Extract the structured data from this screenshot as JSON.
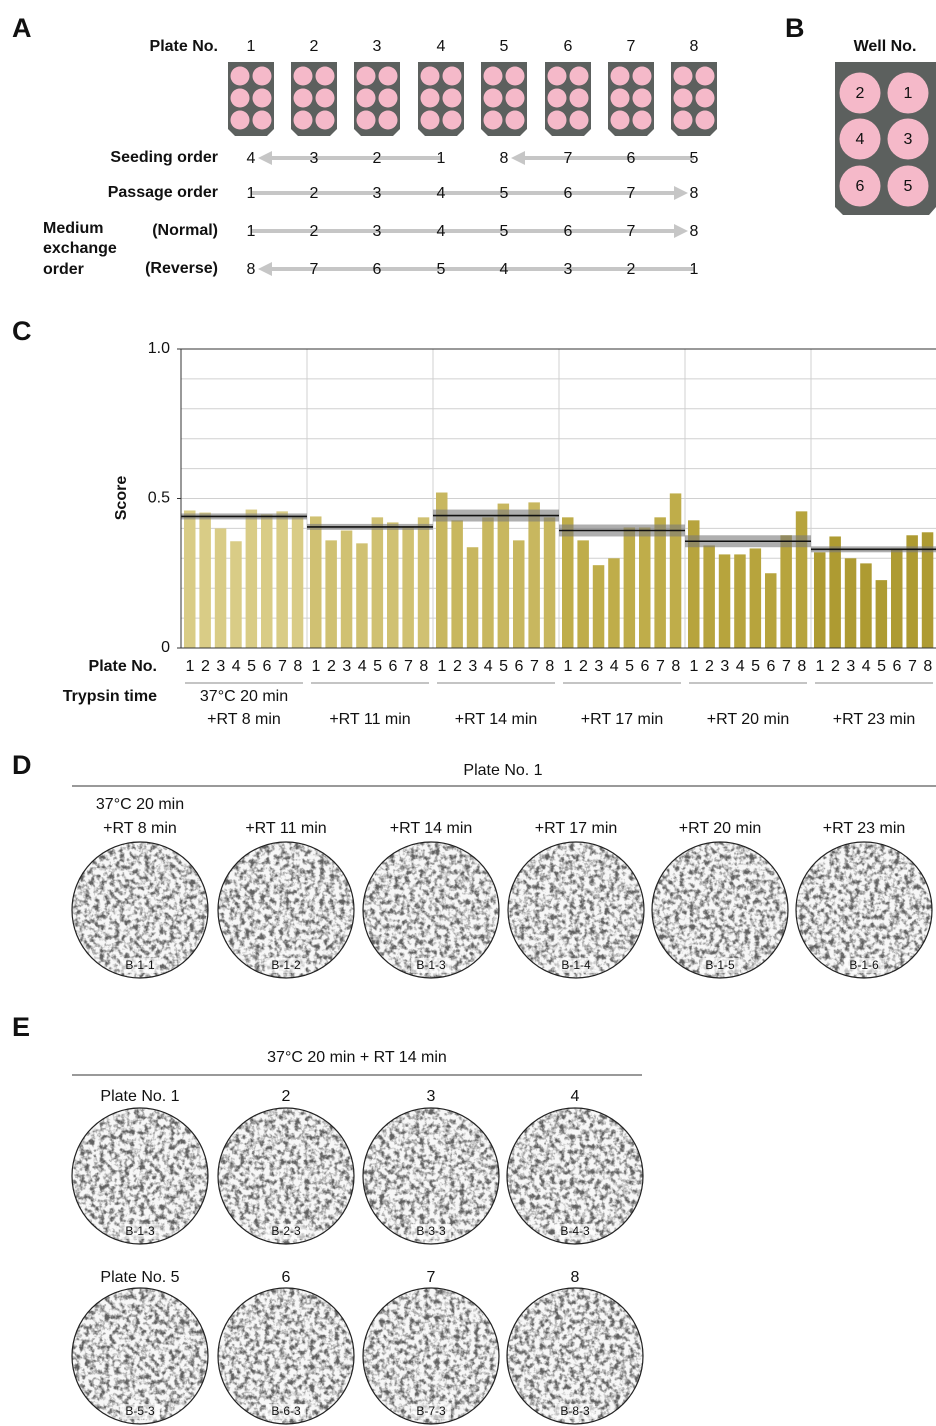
{
  "panel_a": {
    "label": "A",
    "plate_header": "Plate No.",
    "plates": [
      1,
      2,
      3,
      4,
      5,
      6,
      7,
      8
    ],
    "orders": [
      {
        "label": "Seeding order",
        "values": [
          4,
          3,
          2,
          1,
          8,
          7,
          6,
          5
        ]
      },
      {
        "label": "Passage order",
        "values": [
          1,
          2,
          3,
          4,
          5,
          6,
          7,
          8
        ]
      }
    ],
    "medium_exchange": {
      "label": [
        "Medium",
        "exchange",
        "order"
      ],
      "rows": [
        {
          "label": "(Normal)",
          "values": [
            1,
            2,
            3,
            4,
            5,
            6,
            7,
            8
          ]
        },
        {
          "label": "(Reverse)",
          "values": [
            8,
            7,
            6,
            5,
            4,
            3,
            2,
            1
          ]
        }
      ]
    }
  },
  "panel_b": {
    "label": "B",
    "title": "Well No.",
    "wells": [
      2,
      1,
      4,
      3,
      6,
      5
    ]
  },
  "chart_data": {
    "panel_label": "C",
    "type": "bar",
    "ylabel": "Score",
    "xlabel": "Plate No.",
    "group_axis_label": "Trypsin time",
    "categories": [
      "1",
      "2",
      "3",
      "4",
      "5",
      "6",
      "7",
      "8"
    ],
    "ylim": [
      0,
      1
    ],
    "yticks": [
      0,
      0.5,
      {
        "value": 1,
        "label": "1.0"
      }
    ],
    "grid_yticks": [
      0.1,
      0.2,
      0.3,
      0.4,
      0.5,
      0.6,
      0.7,
      0.8,
      0.9,
      1
    ],
    "grid": true,
    "groups": [
      {
        "label": [
          "37°C 20 min",
          "+RT 8 min"
        ],
        "color": "#d9cc86",
        "values": [
          0.46,
          0.453,
          0.4,
          0.357,
          0.463,
          0.447,
          0.457,
          0.437
        ],
        "mean": 0.44,
        "sd": 0.01
      },
      {
        "label": [
          "+RT 11 min"
        ],
        "color": "#d0c172",
        "values": [
          0.44,
          0.36,
          0.393,
          0.35,
          0.437,
          0.42,
          0.407,
          0.437
        ],
        "mean": 0.405,
        "sd": 0.01
      },
      {
        "label": [
          "+RT 14 min"
        ],
        "color": "#c8b75f",
        "values": [
          0.52,
          0.427,
          0.337,
          0.437,
          0.483,
          0.36,
          0.487,
          0.437
        ],
        "mean": 0.443,
        "sd": 0.02
      },
      {
        "label": [
          "+RT 17 min"
        ],
        "color": "#bfad4a",
        "values": [
          0.437,
          0.36,
          0.277,
          0.3,
          0.403,
          0.403,
          0.437,
          0.517
        ],
        "mean": 0.393,
        "sd": 0.02
      },
      {
        "label": [
          "+RT 20 min"
        ],
        "color": "#b7a43d",
        "values": [
          0.427,
          0.343,
          0.313,
          0.313,
          0.333,
          0.25,
          0.377,
          0.457
        ],
        "mean": 0.357,
        "sd": 0.02
      },
      {
        "label": [
          "+RT 23 min"
        ],
        "color": "#ae9b32",
        "values": [
          0.32,
          0.373,
          0.3,
          0.283,
          0.227,
          0.333,
          0.377,
          0.387
        ],
        "mean": 0.33,
        "sd": 0.01
      }
    ]
  },
  "panel_d": {
    "label": "D",
    "title": "Plate No. 1",
    "images": [
      {
        "caption": [
          "37°C 20 min",
          "+RT 8 min"
        ],
        "id": "B-1-1"
      },
      {
        "caption": [
          "+RT 11 min"
        ],
        "id": "B-1-2"
      },
      {
        "caption": [
          "+RT 14 min"
        ],
        "id": "B-1-3"
      },
      {
        "caption": [
          "+RT 17 min"
        ],
        "id": "B-1-4"
      },
      {
        "caption": [
          "+RT 20 min"
        ],
        "id": "B-1-5"
      },
      {
        "caption": [
          "+RT 23 min"
        ],
        "id": "B-1-6"
      }
    ]
  },
  "panel_e": {
    "label": "E",
    "title": "37°C 20 min + RT 14 min",
    "images": [
      {
        "caption": "Plate No. 1",
        "id": "B-1-3"
      },
      {
        "caption": "2",
        "id": "B-2-3"
      },
      {
        "caption": "3",
        "id": "B-3-3"
      },
      {
        "caption": "4",
        "id": "B-4-3"
      },
      {
        "caption": "Plate No. 5",
        "id": "B-5-3"
      },
      {
        "caption": "6",
        "id": "B-6-3"
      },
      {
        "caption": "7",
        "id": "B-7-3"
      },
      {
        "caption": "8",
        "id": "B-8-3"
      }
    ]
  }
}
